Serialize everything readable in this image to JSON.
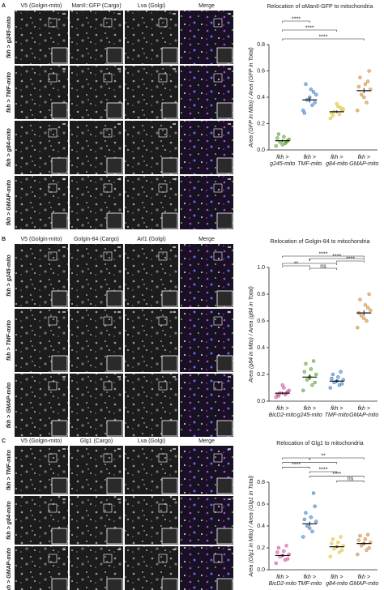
{
  "panels": [
    {
      "letter": "A",
      "columns": [
        "V5 (Golgin-mito)",
        "ManII::GFP (Cargo)",
        "Lva (Golgi)",
        "Merge"
      ],
      "rows": [
        "fkh > g245-mito",
        "fkh > TMF-mito",
        "fkh > g84-mito",
        "fkh > GMAP-mito"
      ]
    },
    {
      "letter": "B",
      "columns": [
        "V5 (Golgin-mito)",
        "Golgin-84 (Cargo)",
        "Arl1 (Golgi)",
        "Merge"
      ],
      "rows": [
        "fkh > g245-mito",
        "fkh > TMF-mito",
        "fkh > GMAP-mito"
      ]
    },
    {
      "letter": "C",
      "columns": [
        "V5 (Golgin-mito)",
        "Glg1 (Cargo)",
        "Lva (Golgi)",
        "Merge"
      ],
      "rows": [
        "fkh > TMF-mito",
        "fkh > g84-mito",
        "fkh > GMAP-mito"
      ]
    }
  ],
  "chart_data": [
    {
      "type": "strip",
      "title": "Relocation of αManII-GFP to mitochondria",
      "y_label": "Area (GFP in Mito) / Area (GFP in Total)",
      "categories": [
        [
          "fkh >",
          "g245-mito"
        ],
        [
          "fkh >",
          "TMF-mito"
        ],
        [
          "fkh >",
          "g84-mito"
        ],
        [
          "fkh >",
          "GMAP-mito"
        ]
      ],
      "colors": [
        "#5aa02c",
        "#3a7fc8",
        "#e0c23a",
        "#d08a3a"
      ],
      "points": [
        [
          0.03,
          0.05,
          0.06,
          0.08,
          0.1,
          0.12,
          0.07,
          0.04,
          0.09,
          0.06
        ],
        [
          0.3,
          0.34,
          0.38,
          0.42,
          0.46,
          0.5,
          0.36,
          0.4,
          0.28,
          0.44
        ],
        [
          0.24,
          0.27,
          0.29,
          0.31,
          0.33,
          0.26,
          0.3,
          0.35,
          0.28,
          0.32
        ],
        [
          0.3,
          0.36,
          0.42,
          0.46,
          0.5,
          0.55,
          0.6,
          0.4,
          0.48,
          0.52
        ]
      ],
      "values": [
        0.07,
        0.38,
        0.29,
        0.45
      ],
      "errors": [
        0.01,
        0.02,
        0.01,
        0.02
      ],
      "ylim": [
        0,
        0.8
      ],
      "yticks": [
        {
          "value": 0,
          "label": "0.0"
        },
        0.2,
        0.4,
        0.6,
        0.8
      ],
      "significance": [
        {
          "between": [
            0,
            1
          ],
          "label": "****"
        },
        {
          "between": [
            0,
            2
          ],
          "label": "****"
        },
        {
          "between": [
            0,
            3
          ],
          "label": "****"
        }
      ]
    },
    {
      "type": "strip",
      "title": "Relocation of Golgin-84 to mitochondria",
      "y_label": "Area (g84 in Mito) / Area (g84 in Total)",
      "categories": [
        [
          "fkh >",
          "BicD2-mito"
        ],
        [
          "fkh >",
          "g245-mito"
        ],
        [
          "fkh >",
          "TMF-mito"
        ],
        [
          "fkh >",
          "GMAP-mito"
        ]
      ],
      "colors": [
        "#d0509a",
        "#5aa02c",
        "#3a7fc8",
        "#d08a3a"
      ],
      "points": [
        [
          0.03,
          0.05,
          0.06,
          0.08,
          0.1,
          0.04,
          0.07,
          0.12,
          0.05,
          0.06
        ],
        [
          0.08,
          0.12,
          0.16,
          0.2,
          0.24,
          0.28,
          0.14,
          0.18,
          0.22,
          0.3
        ],
        [
          0.1,
          0.12,
          0.14,
          0.16,
          0.18,
          0.2,
          0.13,
          0.15,
          0.17,
          0.22
        ],
        [
          0.55,
          0.6,
          0.64,
          0.68,
          0.72,
          0.76,
          0.8,
          0.62,
          0.66,
          0.7
        ]
      ],
      "values": [
        0.06,
        0.18,
        0.15,
        0.66
      ],
      "errors": [
        0.01,
        0.02,
        0.01,
        0.02
      ],
      "ylim": [
        0,
        1
      ],
      "yticks": [
        {
          "value": 0,
          "label": "0.0"
        },
        0.2,
        0.4,
        0.6,
        0.8,
        {
          "value": 1,
          "label": "1.0"
        }
      ],
      "significance": [
        {
          "between": [
            0,
            3
          ],
          "label": "****"
        },
        {
          "between": [
            1,
            3
          ],
          "label": "****"
        },
        {
          "between": [
            2,
            3
          ],
          "label": "****"
        },
        {
          "between": [
            0,
            2
          ],
          "label": "*"
        },
        {
          "between": [
            0,
            1
          ],
          "label": "**"
        },
        {
          "between": [
            1,
            2
          ],
          "label": "ns"
        }
      ]
    },
    {
      "type": "strip",
      "title": "Relocation of Glg1 to mitochondria",
      "y_label": "Area (Glg1 in Mito) / Area (Glg1 in Total)",
      "categories": [
        [
          "fkh >",
          "BicD2-mito"
        ],
        [
          "fkh >",
          "TMF-mito"
        ],
        [
          "fkh >",
          "g84-mito"
        ],
        [
          "fkh >",
          "GMAP-mito"
        ]
      ],
      "colors": [
        "#d0509a",
        "#3a7fc8",
        "#e0c23a",
        "#d08a3a"
      ],
      "points": [
        [
          0.06,
          0.09,
          0.12,
          0.14,
          0.17,
          0.2,
          0.1,
          0.13,
          0.16,
          0.22
        ],
        [
          0.3,
          0.35,
          0.4,
          0.44,
          0.48,
          0.52,
          0.58,
          0.38,
          0.46,
          0.7
        ],
        [
          0.12,
          0.16,
          0.19,
          0.22,
          0.25,
          0.28,
          0.18,
          0.21,
          0.24,
          0.3
        ],
        [
          0.14,
          0.18,
          0.22,
          0.25,
          0.28,
          0.31,
          0.2,
          0.24,
          0.27,
          0.32
        ]
      ],
      "values": [
        0.13,
        0.42,
        0.21,
        0.24
      ],
      "errors": [
        0.01,
        0.02,
        0.01,
        0.01
      ],
      "ylim": [
        0,
        0.8
      ],
      "yticks": [
        {
          "value": 0,
          "label": "0.0"
        },
        0.2,
        0.4,
        0.6,
        0.8
      ],
      "significance": [
        {
          "between": [
            0,
            3
          ],
          "label": "**"
        },
        {
          "between": [
            0,
            2
          ],
          "label": "*"
        },
        {
          "between": [
            0,
            1
          ],
          "label": "****"
        },
        {
          "between": [
            1,
            2
          ],
          "label": "****"
        },
        {
          "between": [
            1,
            3
          ],
          "label": "****"
        },
        {
          "between": [
            2,
            3
          ],
          "label": "ns"
        }
      ]
    }
  ]
}
